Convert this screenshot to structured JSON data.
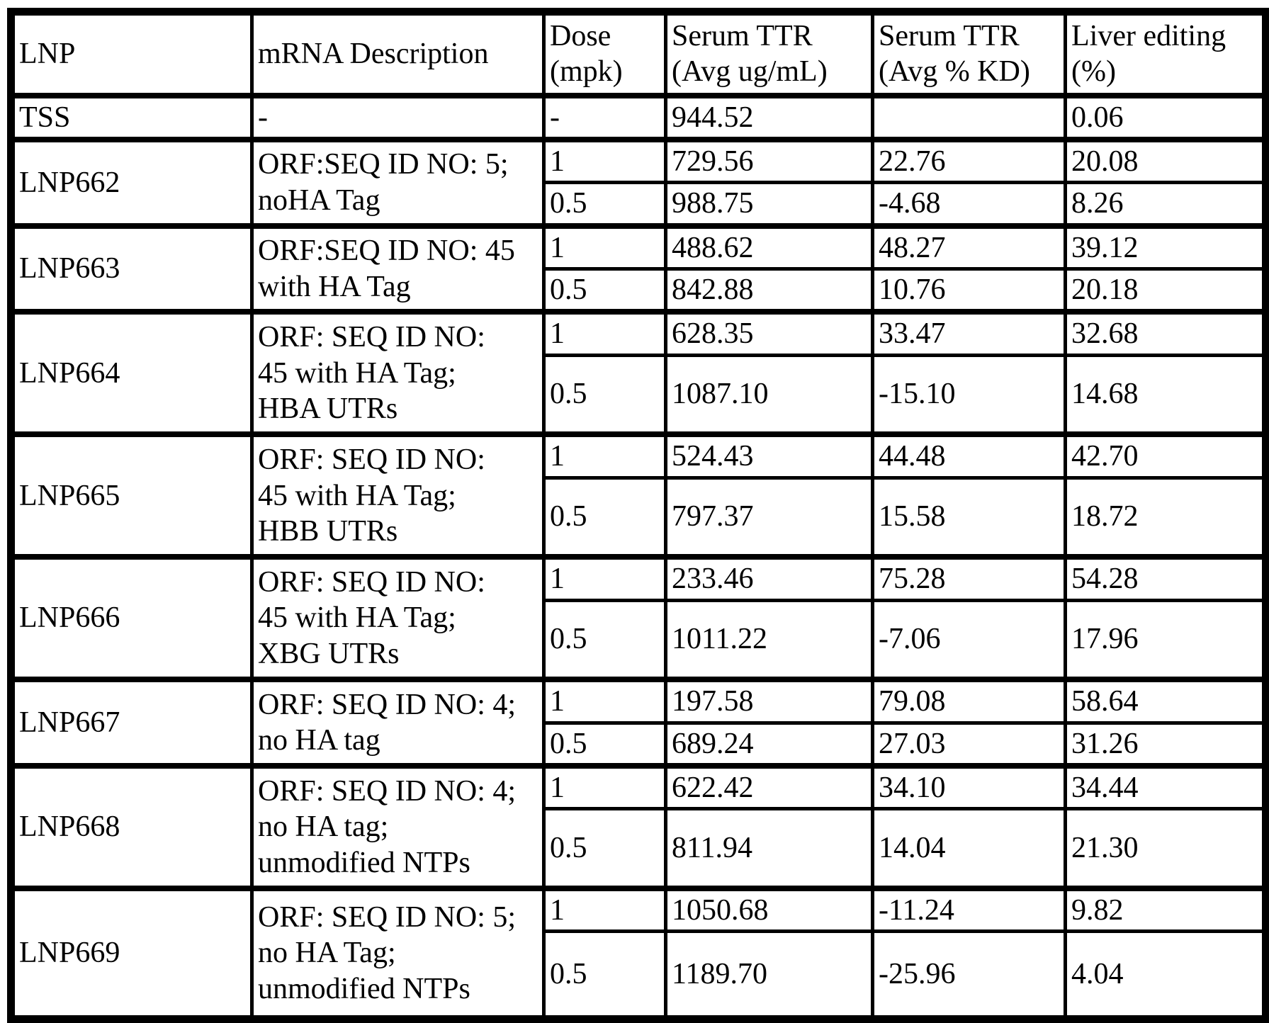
{
  "table": {
    "headers": {
      "lnp": "LNP",
      "mrna": "mRNA Description",
      "dose": "Dose\n(mpk)",
      "serum_ug": "Serum TTR\n(Avg ug/mL)",
      "serum_kd": "Serum TTR\n(Avg % KD)",
      "liver": "Liver editing\n(%)"
    },
    "tss": {
      "lnp": "TSS",
      "mrna": "-",
      "dose": "-",
      "serum_ug": "944.52",
      "serum_kd": "",
      "liver": "0.06"
    },
    "groups": [
      {
        "lnp": "LNP662",
        "mrna": "ORF:SEQ ID NO: 5;\nnoHA Tag",
        "rows": [
          {
            "dose": "1",
            "serum_ug": "729.56",
            "serum_kd": "22.76",
            "liver": "20.08"
          },
          {
            "dose": "0.5",
            "serum_ug": "988.75",
            "serum_kd": "-4.68",
            "liver": "8.26"
          }
        ]
      },
      {
        "lnp": "LNP663",
        "mrna": "ORF:SEQ ID NO: 45\nwith HA Tag",
        "rows": [
          {
            "dose": "1",
            "serum_ug": "488.62",
            "serum_kd": "48.27",
            "liver": "39.12"
          },
          {
            "dose": "0.5",
            "serum_ug": "842.88",
            "serum_kd": "10.76",
            "liver": "20.18"
          }
        ]
      },
      {
        "lnp": "LNP664",
        "mrna": "ORF: SEQ ID NO:\n45 with HA Tag;\nHBA UTRs",
        "rows": [
          {
            "dose": "1",
            "serum_ug": "628.35",
            "serum_kd": "33.47",
            "liver": "32.68"
          },
          {
            "dose": "0.5",
            "serum_ug": "1087.10",
            "serum_kd": "-15.10",
            "liver": "14.68"
          }
        ]
      },
      {
        "lnp": "LNP665",
        "mrna": "ORF: SEQ ID NO:\n45 with HA Tag;\nHBB UTRs",
        "rows": [
          {
            "dose": "1",
            "serum_ug": "524.43",
            "serum_kd": "44.48",
            "liver": "42.70"
          },
          {
            "dose": "0.5",
            "serum_ug": "797.37",
            "serum_kd": "15.58",
            "liver": "18.72"
          }
        ]
      },
      {
        "lnp": "LNP666",
        "mrna": "ORF: SEQ ID NO:\n45 with HA Tag;\nXBG UTRs",
        "rows": [
          {
            "dose": "1",
            "serum_ug": "233.46",
            "serum_kd": "75.28",
            "liver": "54.28"
          },
          {
            "dose": "0.5",
            "serum_ug": "1011.22",
            "serum_kd": "-7.06",
            "liver": "17.96"
          }
        ]
      },
      {
        "lnp": "LNP667",
        "mrna": "ORF: SEQ ID NO: 4;\nno HA tag",
        "rows": [
          {
            "dose": "1",
            "serum_ug": "197.58",
            "serum_kd": "79.08",
            "liver": "58.64"
          },
          {
            "dose": "0.5",
            "serum_ug": "689.24",
            "serum_kd": "27.03",
            "liver": "31.26"
          }
        ]
      },
      {
        "lnp": "LNP668",
        "mrna": "ORF: SEQ ID NO: 4;\nno HA tag;\nunmodified NTPs",
        "rows": [
          {
            "dose": "1",
            "serum_ug": "622.42",
            "serum_kd": "34.10",
            "liver": "34.44"
          },
          {
            "dose": "0.5",
            "serum_ug": "811.94",
            "serum_kd": "14.04",
            "liver": "21.30"
          }
        ]
      },
      {
        "lnp": "LNP669",
        "mrna": "ORF: SEQ ID NO: 5;\nno HA Tag;\nunmodified NTPs",
        "rows": [
          {
            "dose": "1",
            "serum_ug": "1050.68",
            "serum_kd": "-11.24",
            "liver": "9.82"
          },
          {
            "dose": "0.5",
            "serum_ug": "1189.70",
            "serum_kd": "-25.96",
            "liver": "4.04"
          }
        ]
      }
    ]
  }
}
